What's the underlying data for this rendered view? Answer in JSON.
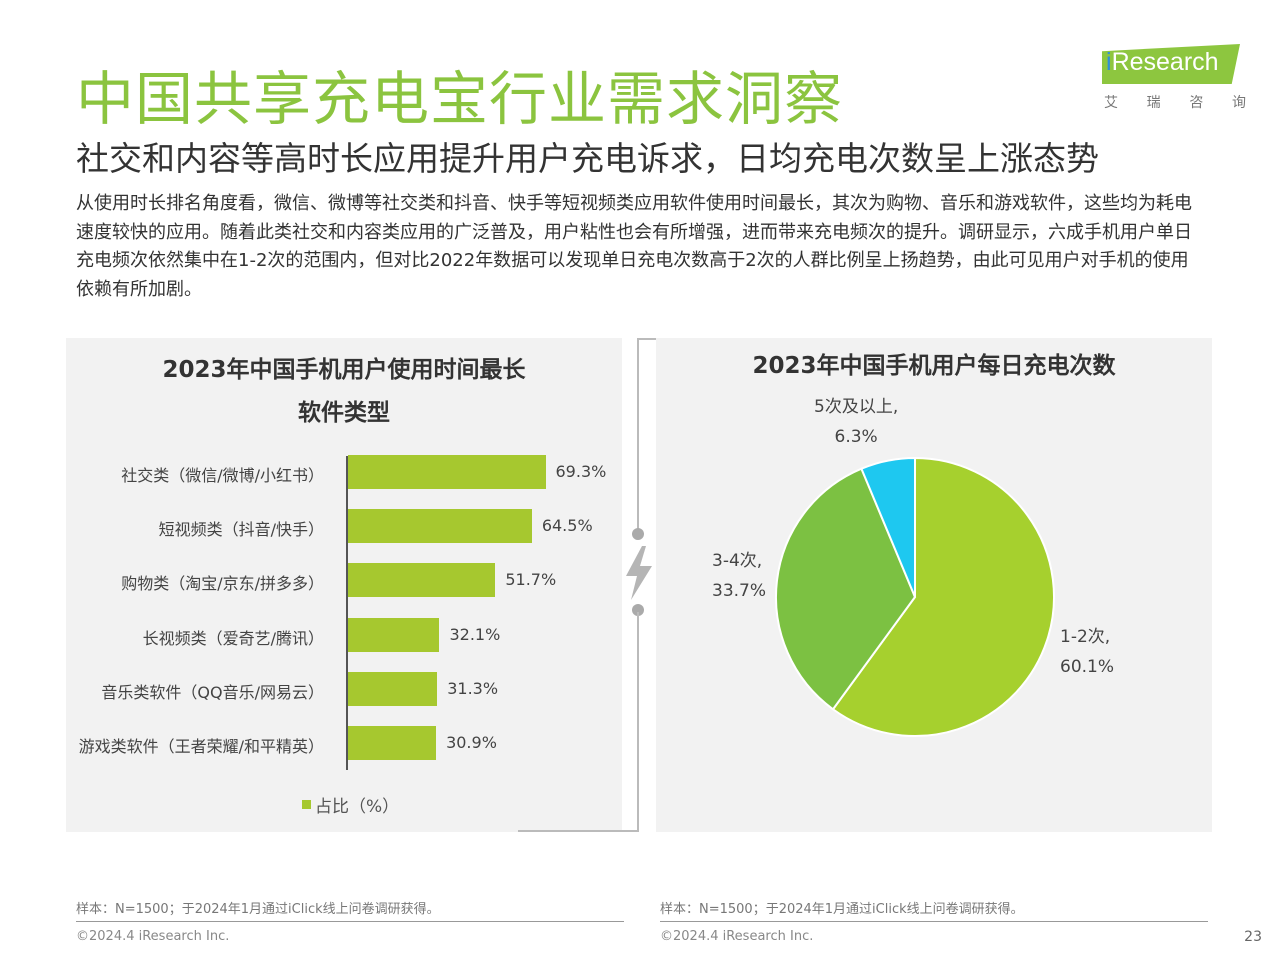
{
  "header": {
    "title": "中国共享充电宝行业需求洞察",
    "subtitle": "社交和内容等高时长应用提升用户充电诉求，日均充电次数呈上涨态势",
    "description": "从使用时长排名角度看，微信、微博等社交类和抖音、快手等短视频类应用软件使用时间最长，其次为购物、音乐和游戏软件，这些均为耗电速度较快的应用。随着此类社交和内容类应用的广泛普及，用户粘性也会有所增强，进而带来充电频次的提升。调研显示，六成手机用户单日充电频次依然集中在1-2次的范围内，但对比2022年数据可以发现单日充电次数高于2次的人群比例呈上扬趋势，由此可见用户对手机的使用依赖有所加剧。"
  },
  "logo": {
    "brand_prefix": "i",
    "brand_rest": "Research",
    "cn_chars": [
      "艾",
      "瑞",
      "咨",
      "询"
    ]
  },
  "colors": {
    "title_green": "#8bc43f",
    "bar_green": "#a6c82f",
    "pie_light_green": "#a6d02e",
    "pie_green": "#7cc142",
    "pie_cyan": "#1ec8f0"
  },
  "chart_data": [
    {
      "type": "bar",
      "orientation": "horizontal",
      "title_line1": "2023年中国手机用户使用时间最长",
      "title_line2": "软件类型",
      "categories": [
        "社交类（微信/微博/小红书）",
        "短视频类（抖音/快手）",
        "购物类（淘宝/京东/拼多多）",
        "长视频类（爱奇艺/腾讯）",
        "音乐类软件（QQ音乐/网易云）",
        "游戏类软件（王者荣耀/和平精英）"
      ],
      "series": [
        {
          "name": "占比（%）",
          "values": [
            69.3,
            64.5,
            51.7,
            32.1,
            31.3,
            30.9
          ],
          "labels": [
            "69.3%",
            "64.5%",
            "51.7%",
            "32.1%",
            "31.3%",
            "30.9%"
          ]
        }
      ],
      "xlim": [
        0,
        100
      ],
      "legend": "bottom",
      "grid": false
    },
    {
      "type": "pie",
      "title": "2023年中国手机用户每日充电次数",
      "slices": [
        {
          "label": "1-2次,",
          "value": 60.1,
          "value_label": "60.1%",
          "color": "#a6d02e"
        },
        {
          "label": "3-4次,",
          "value": 33.7,
          "value_label": "33.7%",
          "color": "#7cc142"
        },
        {
          "label": "5次及以上,",
          "value": 6.3,
          "value_label": "6.3%",
          "color": "#1ec8f0"
        }
      ],
      "legend": "none"
    }
  ],
  "footer": {
    "note_left": "样本：N=1500；于2024年1月通过iClick线上问卷调研获得。",
    "note_right": "样本：N=1500；于2024年1月通过iClick线上问卷调研获得。",
    "copyright_left": "©2024.4 iResearch Inc.",
    "copyright_right": "©2024.4 iResearch Inc.",
    "page_number": "23"
  }
}
